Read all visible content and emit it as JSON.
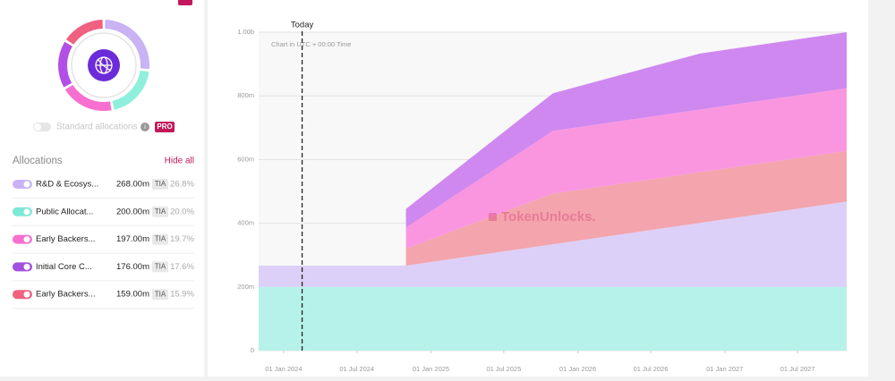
{
  "sidebar": {
    "toggle_label": "Standard allocations",
    "badge": "PRO",
    "heading": "Allocations",
    "hide_all": "Hide all",
    "rows": [
      {
        "name": "R&D & Ecosys...",
        "amount": "268.00m",
        "unit": "TIA",
        "share": "26.8%",
        "color": "#c9b3f5"
      },
      {
        "name": "Public Allocat...",
        "amount": "200.00m",
        "unit": "TIA",
        "share": "20.0%",
        "color": "#7de8d6"
      },
      {
        "name": "Early Backers...",
        "amount": "197.00m",
        "unit": "TIA",
        "share": "19.7%",
        "color": "#f76fcf"
      },
      {
        "name": "Initial Core C...",
        "amount": "176.00m",
        "unit": "TIA",
        "share": "17.6%",
        "color": "#a34fe0"
      },
      {
        "name": "Early Backers...",
        "amount": "159.00m",
        "unit": "TIA",
        "share": "15.9%",
        "color": "#f0607f"
      }
    ]
  },
  "chart_data": {
    "type": "stacked-area",
    "subtitle": "Chart in UTC + 00:00 Time",
    "watermark": "TokenUnlocks.",
    "today": {
      "text": "Today",
      "x": "2024-02-16"
    },
    "x": [
      "2023-10-31",
      "2024-10-31",
      "2024-10-31",
      "2025-10-31",
      "2026-10-31",
      "2027-10-31"
    ],
    "series": [
      {
        "name": "Public Allocation",
        "color": "#b6f2e9",
        "ring_color": "#8ef0dc",
        "values": [
          200,
          200,
          200,
          200,
          200,
          200
        ]
      },
      {
        "name": "R&D & Ecosystem",
        "color": "#ddd0f8",
        "ring_color": "#c9b3f5",
        "values": [
          67,
          67,
          67,
          134,
          201,
          268
        ]
      },
      {
        "name": "Early Backers (Series B)",
        "color": "#f3a4ac",
        "ring_color": "#f0607f",
        "values": [
          0,
          0,
          53,
          159,
          159,
          159
        ]
      },
      {
        "name": "Early Backers (Series A)",
        "color": "#fa96e0",
        "ring_color": "#f76fcf",
        "values": [
          0,
          0,
          66,
          197,
          197,
          197
        ]
      },
      {
        "name": "Initial Core Contributors",
        "color": "#cf88ef",
        "ring_color": "#b24fe6",
        "values": [
          0,
          0,
          59,
          118,
          176,
          176
        ]
      }
    ],
    "ring_order": [
      1,
      0,
      3,
      4,
      2
    ],
    "xlim": [
      "2023-10-31",
      "2027-10-31"
    ],
    "xticks": [
      {
        "value": "2024-01-01",
        "label": "01 Jan 2024"
      },
      {
        "value": "2024-07-01",
        "label": "01 Jul 2024"
      },
      {
        "value": "2025-01-01",
        "label": "01 Jan 2025"
      },
      {
        "value": "2025-07-01",
        "label": "01 Jul 2025"
      },
      {
        "value": "2026-01-01",
        "label": "01 Jan 2026"
      },
      {
        "value": "2026-07-01",
        "label": "01 Jul 2026"
      },
      {
        "value": "2027-01-01",
        "label": "01 Jan 2027"
      },
      {
        "value": "2027-07-01",
        "label": "01 Jul 2027"
      }
    ],
    "ylim": [
      0,
      1000
    ],
    "yticks": [
      0,
      {
        "value": 200,
        "label": "200m"
      },
      {
        "value": 400,
        "label": "400m"
      },
      {
        "value": 600,
        "label": "600m"
      },
      {
        "value": 800,
        "label": "800m"
      },
      {
        "value": 1000,
        "label": "1.00b"
      }
    ],
    "grid": true
  }
}
